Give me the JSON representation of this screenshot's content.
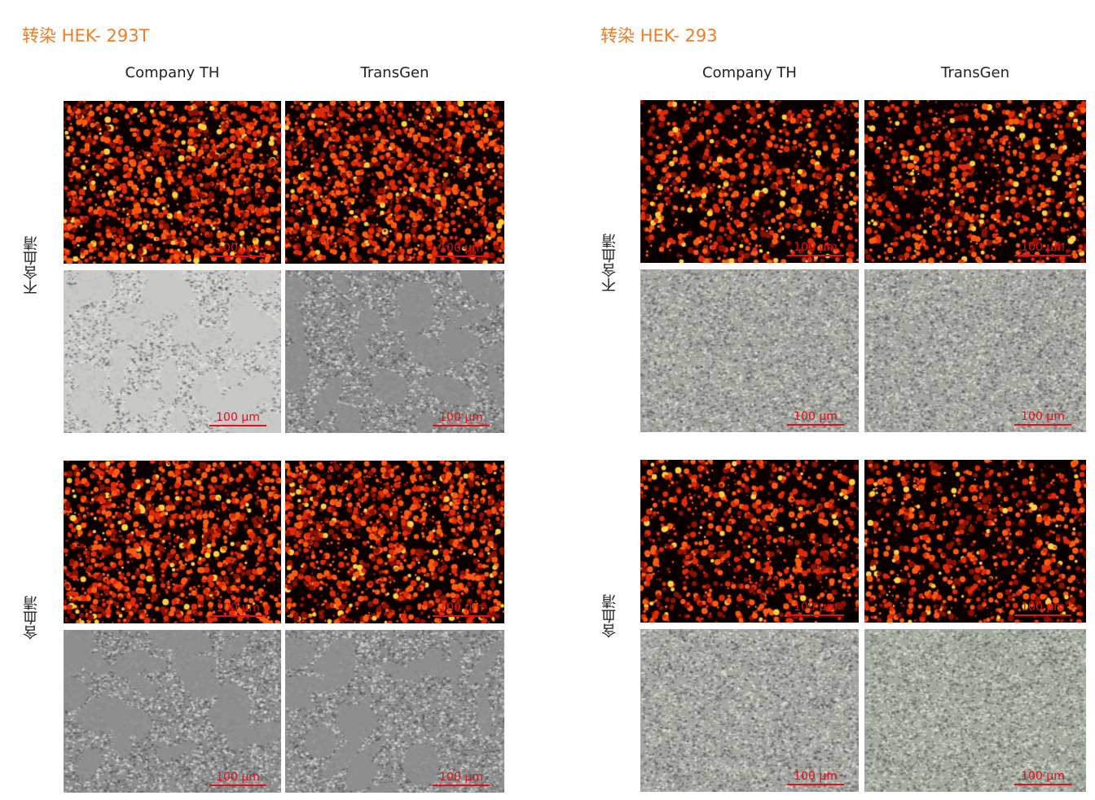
{
  "figures": [
    {
      "title": "转染 HEK- 293T",
      "columns": [
        "Company TH",
        "TransGen"
      ],
      "rows": [
        {
          "label": "不含血清",
          "scale_bar": "100 µm"
        },
        {
          "label": "含血清",
          "scale_bar": "100 µm"
        }
      ]
    },
    {
      "title": "转染 HEK- 293",
      "columns": [
        "Company TH",
        "TransGen"
      ],
      "rows": [
        {
          "label": "不含血清",
          "scale_bar": "100 µm"
        },
        {
          "label": "含血清",
          "scale_bar": "100 µm"
        }
      ]
    }
  ],
  "colors": {
    "title": "#ee7d2a",
    "scale_bar": "#e0101a",
    "fluorescence": "#ff4a10"
  }
}
